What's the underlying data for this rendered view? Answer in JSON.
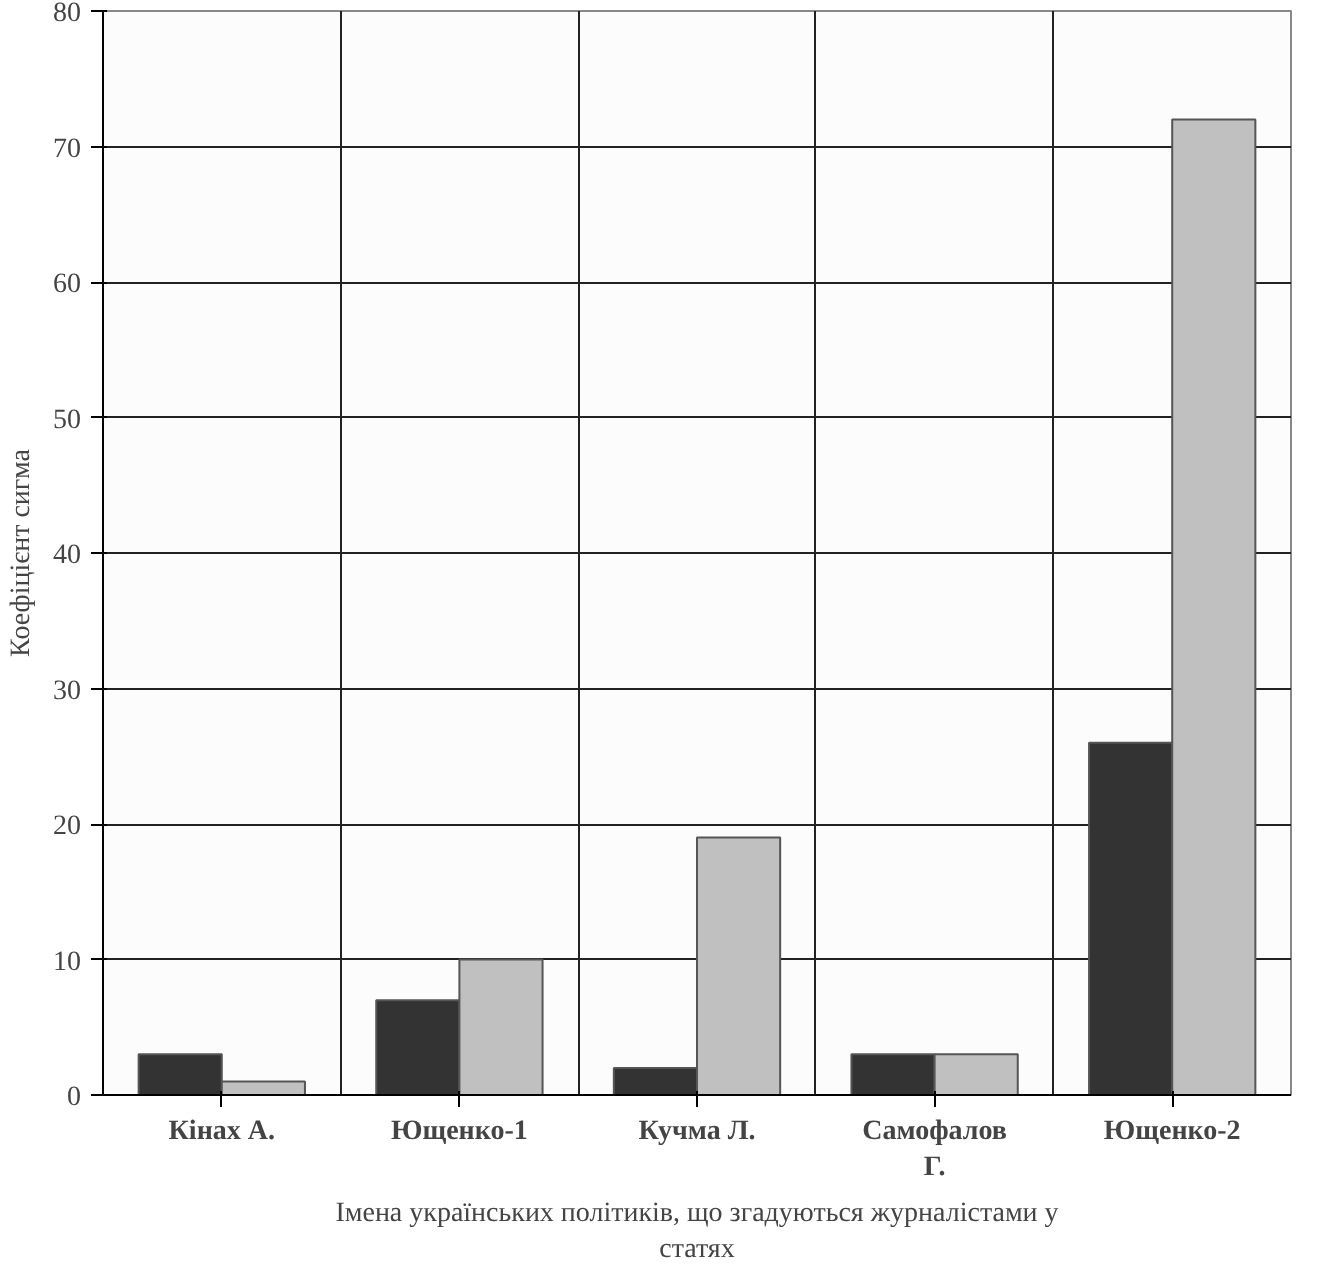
{
  "chart_data": {
    "type": "bar",
    "categories": [
      "Кінах А.",
      "Ющенко-1",
      "Кучма Л.",
      "Самофалов Г.",
      "Ющенко-2"
    ],
    "series": [
      {
        "color": "#333333",
        "values": [
          3,
          7,
          2,
          3,
          26
        ]
      },
      {
        "color": "#c0c0c0",
        "values": [
          1,
          10,
          19,
          3,
          72
        ]
      }
    ],
    "xlabel": "Імена українських політиків, що згадуються журналістами у статях",
    "ylabel": "Коефіцієнт сигма",
    "ylim": [
      0,
      80
    ],
    "yticks": [
      0,
      10,
      20,
      30,
      40,
      50,
      60,
      70,
      80
    ],
    "grid": true
  }
}
